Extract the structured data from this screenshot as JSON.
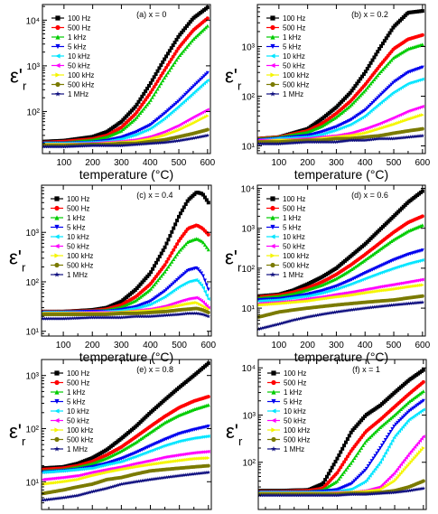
{
  "figure": {
    "legend_labels": [
      "100 Hz",
      "500 Hz",
      "1 kHz",
      "5 kHz",
      "10 kHz",
      "50 kHz",
      "100 kHz",
      "500 kHz",
      "1 MHz"
    ],
    "series_colors": [
      "#000000",
      "#ff0000",
      "#00cc00",
      "#0000ee",
      "#00e5ff",
      "#ff00ff",
      "#f5f500",
      "#7a7a00",
      "#101080"
    ],
    "series_markers": [
      "square",
      "circle",
      "triangle-up",
      "triangle-down",
      "triangle-left",
      "triangle-left",
      "triangle-right",
      "circle",
      "star"
    ]
  },
  "chart_data": [
    {
      "type": "line",
      "panel_label": "(a) x = 0",
      "xlabel": "temperature (°C)",
      "ylabel": "ε'r",
      "ylabel_main": "ε'",
      "ylabel_sub": "r",
      "xlim": [
        25,
        610
      ],
      "ylim": [
        12,
        22000
      ],
      "yscale": "log",
      "xticks": [
        100,
        200,
        300,
        400,
        500,
        600
      ],
      "yticks": [
        100,
        1000,
        10000
      ],
      "ytick_labels": [
        "10²",
        "10³",
        "10⁴"
      ],
      "x": [
        30,
        100,
        200,
        250,
        300,
        350,
        400,
        450,
        500,
        550,
        600
      ],
      "series": [
        {
          "name": "100 Hz",
          "values": [
            22,
            23,
            28,
            36,
            60,
            130,
            400,
            1400,
            4500,
            11000,
            19000
          ]
        },
        {
          "name": "500 Hz",
          "values": [
            21,
            22,
            25,
            30,
            45,
            90,
            250,
            800,
            2500,
            6000,
            11000
          ]
        },
        {
          "name": "1 kHz",
          "values": [
            21,
            21,
            24,
            28,
            38,
            70,
            170,
            550,
            1600,
            3800,
            7500
          ]
        },
        {
          "name": "5 kHz",
          "values": [
            20,
            20,
            21,
            23,
            27,
            35,
            50,
            90,
            170,
            350,
            700
          ]
        },
        {
          "name": "10 kHz",
          "values": [
            20,
            20,
            21,
            22,
            25,
            31,
            42,
            70,
            130,
            250,
            480
          ]
        },
        {
          "name": "50 kHz",
          "values": [
            19,
            19,
            20,
            21,
            22,
            24,
            28,
            36,
            50,
            75,
            110
          ]
        },
        {
          "name": "100 kHz",
          "values": [
            19,
            19,
            19,
            20,
            21,
            22,
            25,
            30,
            39,
            55,
            80
          ]
        },
        {
          "name": "500 kHz",
          "values": [
            18,
            18,
            19,
            19,
            20,
            20,
            22,
            24,
            28,
            33,
            40
          ]
        },
        {
          "name": "1 MHz",
          "values": [
            17,
            17,
            18,
            18,
            18,
            19,
            20,
            21,
            23,
            26,
            30
          ]
        }
      ]
    },
    {
      "type": "line",
      "panel_label": "(b) x = 0.2",
      "xlabel": "temperature (°C)",
      "ylabel": "ε'r",
      "ylabel_main": "ε'",
      "ylabel_sub": "r",
      "xlim": [
        25,
        610
      ],
      "ylim": [
        7,
        7000
      ],
      "yscale": "log",
      "xticks": [
        100,
        200,
        300,
        400,
        500,
        600
      ],
      "yticks": [
        10,
        100,
        1000
      ],
      "ytick_labels": [
        "10¹",
        "10²",
        "10³"
      ],
      "x": [
        30,
        100,
        200,
        250,
        300,
        350,
        400,
        450,
        500,
        550,
        600
      ],
      "series": [
        {
          "name": "100 Hz",
          "values": [
            14,
            15,
            22,
            35,
            60,
            120,
            300,
            900,
            2500,
            4800,
            5200
          ]
        },
        {
          "name": "500 Hz",
          "values": [
            14,
            15,
            20,
            28,
            45,
            80,
            170,
            400,
            900,
            1400,
            1700
          ]
        },
        {
          "name": "1 kHz",
          "values": [
            14,
            15,
            19,
            25,
            38,
            65,
            130,
            290,
            600,
            900,
            1100
          ]
        },
        {
          "name": "5 kHz",
          "values": [
            13,
            14,
            16,
            19,
            24,
            33,
            52,
            100,
            190,
            300,
            380
          ]
        },
        {
          "name": "10 kHz",
          "values": [
            13,
            14,
            15,
            17,
            21,
            27,
            40,
            70,
            120,
            180,
            220
          ]
        },
        {
          "name": "50 kHz",
          "values": [
            13,
            13,
            14,
            15,
            16,
            18,
            22,
            28,
            37,
            50,
            62
          ]
        },
        {
          "name": "100 kHz",
          "values": [
            12,
            13,
            13,
            14,
            15,
            16,
            18,
            22,
            27,
            34,
            42
          ]
        },
        {
          "name": "500 kHz",
          "values": [
            12,
            12,
            13,
            13,
            14,
            14,
            15,
            16,
            18,
            20,
            22
          ]
        },
        {
          "name": "1 MHz",
          "values": [
            11,
            11,
            12,
            12,
            12,
            13,
            13,
            14,
            14,
            15,
            16
          ]
        }
      ]
    },
    {
      "type": "line",
      "panel_label": "(c) x = 0.4",
      "xlabel": "temperature (°C)",
      "ylabel": "ε'r",
      "ylabel_main": "ε'",
      "ylabel_sub": "r",
      "xlim": [
        25,
        610
      ],
      "ylim": [
        8,
        9000
      ],
      "yscale": "log",
      "xticks": [
        100,
        200,
        300,
        400,
        500,
        600
      ],
      "yticks": [
        10,
        100,
        1000
      ],
      "ytick_labels": [
        "10¹",
        "10²",
        "10³"
      ],
      "x": [
        30,
        100,
        200,
        250,
        300,
        350,
        400,
        450,
        500,
        530,
        560,
        580,
        600
      ],
      "series": [
        {
          "name": "100 Hz",
          "values": [
            25,
            25,
            27,
            30,
            40,
            70,
            150,
            500,
            2200,
            4500,
            6500,
            6000,
            4000
          ]
        },
        {
          "name": "500 Hz",
          "values": [
            25,
            25,
            26,
            28,
            34,
            50,
            90,
            220,
            700,
            1200,
            1400,
            1200,
            900
          ]
        },
        {
          "name": "1 kHz",
          "values": [
            25,
            25,
            26,
            27,
            31,
            42,
            70,
            160,
            420,
            650,
            750,
            650,
            450
          ]
        },
        {
          "name": "5 kHz",
          "values": [
            24,
            24,
            25,
            25,
            27,
            31,
            40,
            65,
            120,
            170,
            190,
            140,
            70
          ]
        },
        {
          "name": "10 kHz",
          "values": [
            24,
            24,
            24,
            25,
            26,
            29,
            35,
            50,
            80,
            100,
            110,
            80,
            45
          ]
        },
        {
          "name": "50 kHz",
          "values": [
            23,
            23,
            24,
            24,
            24,
            26,
            28,
            32,
            40,
            45,
            48,
            40,
            30
          ]
        },
        {
          "name": "100 kHz",
          "values": [
            23,
            23,
            23,
            23,
            24,
            25,
            26,
            29,
            33,
            36,
            38,
            33,
            28
          ]
        },
        {
          "name": "500 kHz",
          "values": [
            22,
            22,
            22,
            22,
            23,
            23,
            24,
            25,
            27,
            28,
            29,
            27,
            24
          ]
        },
        {
          "name": "1 MHz",
          "values": [
            18,
            18,
            19,
            19,
            19,
            20,
            20,
            21,
            22,
            23,
            23,
            22,
            20
          ]
        }
      ]
    },
    {
      "type": "line",
      "panel_label": "(d) x = 0.6",
      "xlabel": "temperature (°C)",
      "ylabel": "ε'r",
      "ylabel_main": "ε'",
      "ylabel_sub": "r",
      "xlim": [
        25,
        610
      ],
      "ylim": [
        2,
        12000
      ],
      "yscale": "log",
      "xticks": [
        100,
        200,
        300,
        400,
        500,
        600
      ],
      "yticks": [
        10,
        100,
        1000,
        10000
      ],
      "ytick_labels": [
        "10¹",
        "10²",
        "10³",
        "10⁴"
      ],
      "x": [
        30,
        100,
        150,
        200,
        250,
        300,
        350,
        400,
        450,
        500,
        550,
        600
      ],
      "series": [
        {
          "name": "100 Hz",
          "values": [
            20,
            22,
            28,
            40,
            60,
            100,
            200,
            400,
            900,
            2000,
            4500,
            8500
          ]
        },
        {
          "name": "500 Hz",
          "values": [
            19,
            21,
            25,
            32,
            45,
            70,
            120,
            220,
            420,
            800,
            1400,
            2000
          ]
        },
        {
          "name": "1 kHz",
          "values": [
            18,
            20,
            23,
            29,
            38,
            55,
            90,
            160,
            290,
            520,
            850,
            1200
          ]
        },
        {
          "name": "5 kHz",
          "values": [
            16,
            17,
            19,
            22,
            27,
            35,
            50,
            75,
            110,
            160,
            220,
            280
          ]
        },
        {
          "name": "10 kHz",
          "values": [
            15,
            16,
            18,
            20,
            24,
            30,
            40,
            55,
            75,
            100,
            130,
            160
          ]
        },
        {
          "name": "50 kHz",
          "values": [
            13,
            14,
            15,
            17,
            19,
            22,
            25,
            29,
            34,
            39,
            45,
            52
          ]
        },
        {
          "name": "100 kHz",
          "values": [
            12,
            13,
            14,
            15,
            17,
            19,
            21,
            24,
            27,
            30,
            34,
            38
          ]
        },
        {
          "name": "500 kHz",
          "values": [
            6,
            8,
            9,
            10,
            11,
            12,
            13,
            14,
            15,
            16,
            18,
            20
          ]
        },
        {
          "name": "1 MHz",
          "values": [
            3,
            4,
            5,
            6,
            7,
            8,
            9,
            10,
            11,
            12,
            13,
            14
          ]
        }
      ]
    },
    {
      "type": "line",
      "panel_label": "(e) x = 0.8",
      "xlabel": "temperature (°C)",
      "ylabel": "ε'r",
      "ylabel_main": "ε'",
      "ylabel_sub": "r",
      "xlim": [
        25,
        610
      ],
      "ylim": [
        3,
        2000
      ],
      "yscale": "log",
      "xticks": [
        100,
        200,
        300,
        400,
        500,
        600
      ],
      "yticks": [
        10,
        100,
        1000
      ],
      "ytick_labels": [
        "10¹",
        "10²",
        "10³"
      ],
      "x": [
        30,
        100,
        150,
        200,
        250,
        300,
        350,
        400,
        450,
        500,
        550,
        600
      ],
      "series": [
        {
          "name": "100 Hz",
          "values": [
            18,
            19,
            22,
            28,
            40,
            65,
            110,
            200,
            350,
            600,
            1000,
            1700
          ]
        },
        {
          "name": "500 Hz",
          "values": [
            17,
            18,
            20,
            24,
            32,
            45,
            70,
            110,
            170,
            250,
            330,
            400
          ]
        },
        {
          "name": "1 kHz",
          "values": [
            16,
            17,
            19,
            22,
            28,
            38,
            55,
            85,
            130,
            180,
            230,
            280
          ]
        },
        {
          "name": "5 kHz",
          "values": [
            15,
            16,
            17,
            19,
            22,
            27,
            35,
            47,
            62,
            80,
            95,
            110
          ]
        },
        {
          "name": "10 kHz",
          "values": [
            15,
            16,
            17,
            18,
            21,
            24,
            30,
            38,
            48,
            58,
            66,
            72
          ]
        },
        {
          "name": "50 kHz",
          "values": [
            11,
            12,
            13,
            15,
            17,
            19,
            22,
            25,
            29,
            32,
            35,
            37
          ]
        },
        {
          "name": "100 kHz",
          "values": [
            9,
            10,
            11,
            13,
            15,
            17,
            19,
            21,
            23,
            25,
            27,
            28
          ]
        },
        {
          "name": "500 kHz",
          "values": [
            6,
            7,
            8,
            9,
            11,
            12,
            14,
            16,
            17,
            18,
            19,
            20
          ]
        },
        {
          "name": "1 MHz",
          "values": [
            4.5,
            5,
            5.5,
            6.5,
            7.5,
            9,
            10,
            11,
            12,
            13,
            14,
            15
          ]
        }
      ]
    },
    {
      "type": "line",
      "panel_label": "(f) x = 1",
      "xlabel": "temperature (°C)",
      "ylabel": "ε'r",
      "ylabel_main": "ε'",
      "ylabel_sub": "r",
      "xlim": [
        25,
        610
      ],
      "ylim": [
        10,
        15000
      ],
      "yscale": "log",
      "xticks": [
        100,
        200,
        300,
        400,
        500,
        600
      ],
      "yticks": [
        100,
        1000,
        10000
      ],
      "ytick_labels": [
        "10²",
        "10³",
        "10⁴"
      ],
      "x": [
        30,
        100,
        200,
        250,
        300,
        350,
        400,
        450,
        500,
        550,
        600
      ],
      "series": [
        {
          "name": "100 Hz",
          "values": [
            25,
            25,
            26,
            35,
            120,
            450,
            1000,
            1600,
            3000,
            5500,
            9000
          ]
        },
        {
          "name": "500 Hz",
          "values": [
            24,
            24,
            25,
            28,
            60,
            180,
            450,
            800,
            1500,
            2800,
            5000
          ]
        },
        {
          "name": "1 kHz",
          "values": [
            24,
            24,
            24,
            26,
            40,
            100,
            280,
            550,
            1000,
            1900,
            3200
          ]
        },
        {
          "name": "5 kHz",
          "values": [
            23,
            23,
            23,
            24,
            26,
            35,
            70,
            200,
            600,
            1200,
            2000
          ]
        },
        {
          "name": "10 kHz",
          "values": [
            23,
            23,
            23,
            23,
            24,
            27,
            40,
            100,
            350,
            800,
            1300
          ]
        },
        {
          "name": "50 kHz",
          "values": [
            22,
            22,
            22,
            22,
            23,
            23,
            25,
            30,
            60,
            150,
            350
          ]
        },
        {
          "name": "100 kHz",
          "values": [
            22,
            22,
            22,
            22,
            22,
            23,
            24,
            26,
            40,
            90,
            200
          ]
        },
        {
          "name": "500 kHz",
          "values": [
            21,
            21,
            21,
            21,
            21,
            22,
            22,
            23,
            25,
            30,
            40
          ]
        },
        {
          "name": "1 MHz",
          "values": [
            20,
            20,
            20,
            20,
            20,
            21,
            21,
            22,
            23,
            25,
            28
          ]
        }
      ]
    }
  ]
}
